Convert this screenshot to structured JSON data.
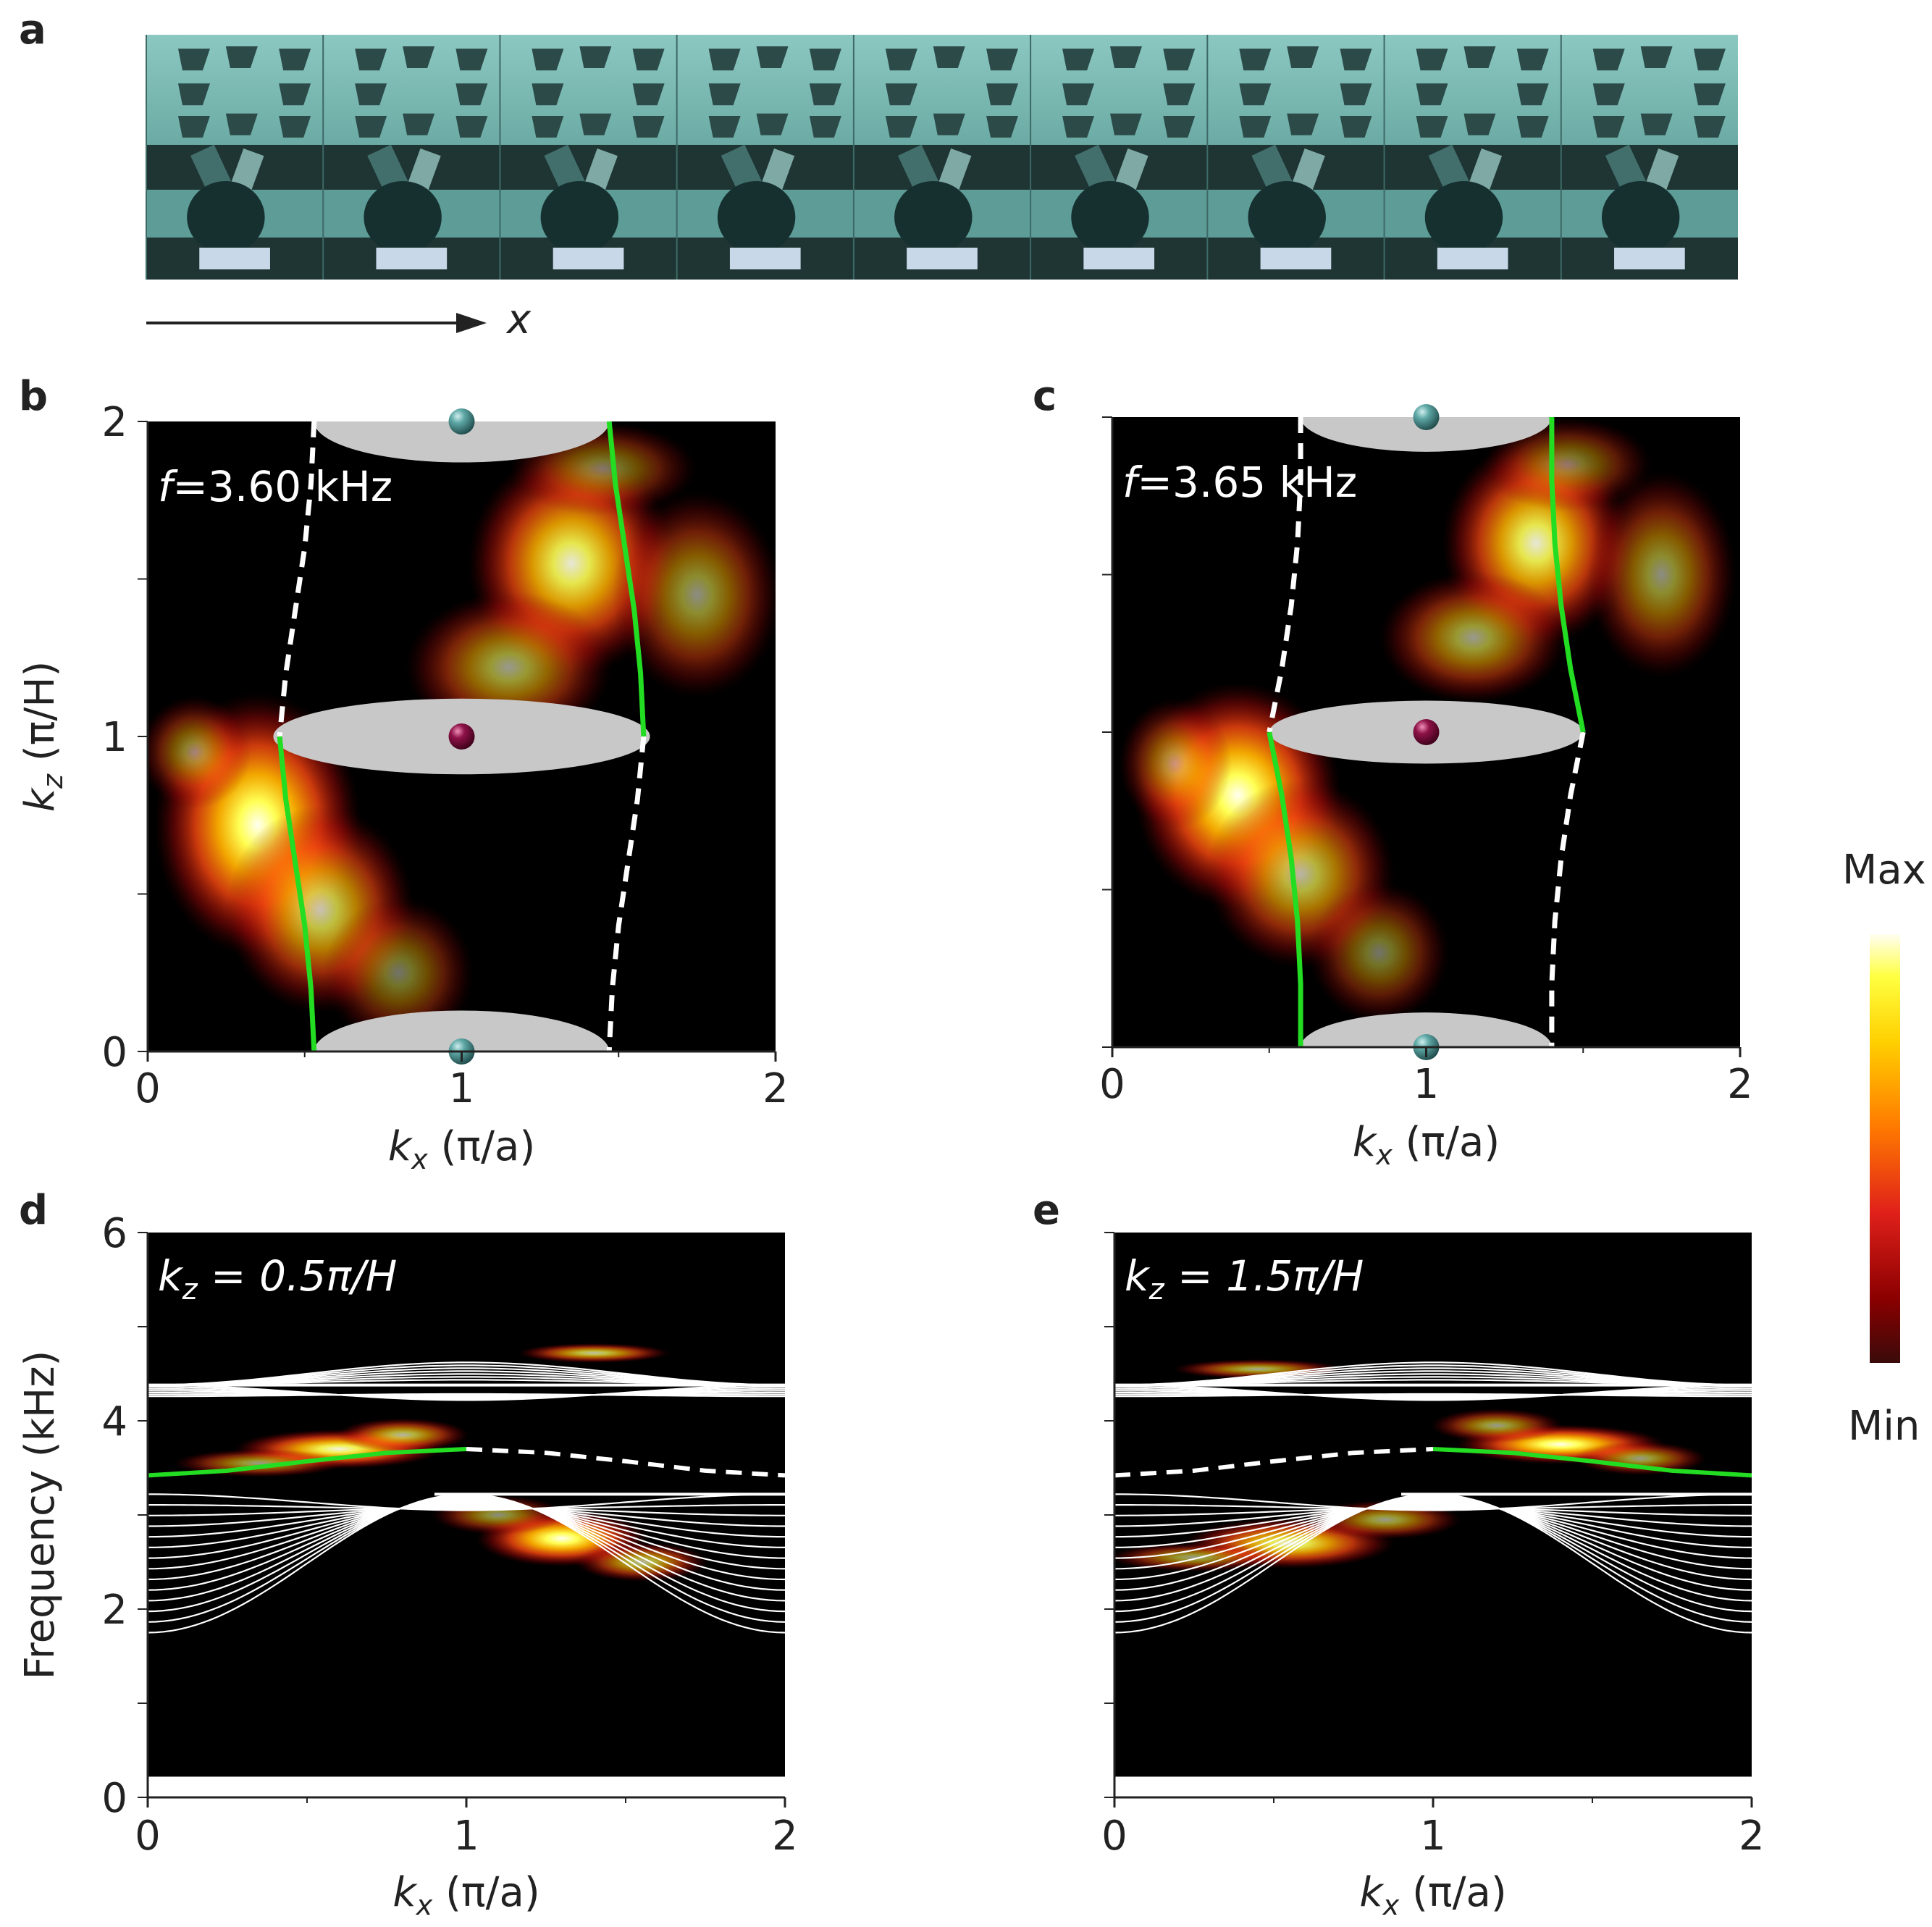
{
  "panel_labels": [
    "a",
    "b",
    "c",
    "d",
    "e"
  ],
  "structure": {
    "axis_label": "x",
    "unit_cells": 9
  },
  "colorbar": {
    "max_label": "Max",
    "min_label": "Min",
    "colormap": [
      "#3a0a0a",
      "#8b0000",
      "#e0201a",
      "#ff7a00",
      "#ffd000",
      "#ffff40",
      "#fffef0"
    ]
  },
  "colors": {
    "background": "#000000",
    "green_branch": "#22dd22",
    "white_branch": "#ffffff",
    "ellipse": "#c8c8c8",
    "teal_sphere": "#3f8a88",
    "magenta_sphere": "#7a0e3c",
    "structure_top": "#7dbcb6",
    "structure_dark": "#1e3534"
  },
  "chart_data": [
    {
      "panel": "b",
      "type": "heatmap",
      "annotation_italic": "f",
      "annotation_rest": "=3.60 kHz",
      "xlabel_var": "k",
      "xlabel_sub": "x",
      "xlabel_unit": " (π/a)",
      "ylabel_var": "k",
      "ylabel_sub": "z",
      "ylabel_unit": " (π/H)",
      "xlim": [
        0,
        2
      ],
      "ylim": [
        0,
        2
      ],
      "xticks": [
        "0",
        "1",
        "2"
      ],
      "yticks": [
        "0",
        "1",
        "2"
      ],
      "green_branches": [
        [
          [
            0.42,
            1.0
          ],
          [
            0.44,
            0.8
          ],
          [
            0.47,
            0.6
          ],
          [
            0.5,
            0.4
          ],
          [
            0.52,
            0.2
          ],
          [
            0.53,
            0.0
          ]
        ],
        [
          [
            1.47,
            2.0
          ],
          [
            1.49,
            1.8
          ],
          [
            1.52,
            1.6
          ],
          [
            1.55,
            1.4
          ],
          [
            1.57,
            1.2
          ],
          [
            1.58,
            1.0
          ]
        ]
      ],
      "white_branches": [
        [
          [
            0.53,
            2.0
          ],
          [
            0.52,
            1.8
          ],
          [
            0.5,
            1.6
          ],
          [
            0.47,
            1.4
          ],
          [
            0.44,
            1.2
          ],
          [
            0.42,
            1.0
          ]
        ],
        [
          [
            1.58,
            1.0
          ],
          [
            1.56,
            0.8
          ],
          [
            1.53,
            0.6
          ],
          [
            1.5,
            0.4
          ],
          [
            1.48,
            0.2
          ],
          [
            1.47,
            0.0
          ]
        ]
      ],
      "ellipses": [
        {
          "cx": 1.0,
          "cy": 1.0,
          "rx": 0.6,
          "ry": 0.12
        },
        {
          "cx": 1.0,
          "cy": 2.0,
          "rx": 0.47,
          "ry": 0.13
        },
        {
          "cx": 1.0,
          "cy": 0.0,
          "rx": 0.47,
          "ry": 0.13
        }
      ],
      "spheres": [
        {
          "x": 1.0,
          "y": 2.0,
          "kind": "teal"
        },
        {
          "x": 1.0,
          "y": 1.0,
          "kind": "magenta"
        },
        {
          "x": 1.0,
          "y": 0.0,
          "kind": "teal"
        }
      ],
      "blobs": [
        {
          "x": 0.35,
          "y": 0.72,
          "sx": 0.22,
          "sy": 0.28,
          "a": 1.0
        },
        {
          "x": 0.55,
          "y": 0.45,
          "sx": 0.2,
          "sy": 0.22,
          "a": 0.75
        },
        {
          "x": 0.8,
          "y": 0.25,
          "sx": 0.16,
          "sy": 0.16,
          "a": 0.45
        },
        {
          "x": 0.15,
          "y": 0.95,
          "sx": 0.12,
          "sy": 0.12,
          "a": 0.5
        },
        {
          "x": 1.35,
          "y": 1.55,
          "sx": 0.22,
          "sy": 0.24,
          "a": 0.9
        },
        {
          "x": 1.15,
          "y": 1.22,
          "sx": 0.22,
          "sy": 0.16,
          "a": 0.6
        },
        {
          "x": 1.75,
          "y": 1.45,
          "sx": 0.18,
          "sy": 0.22,
          "a": 0.55
        },
        {
          "x": 1.45,
          "y": 1.85,
          "sx": 0.2,
          "sy": 0.1,
          "a": 0.45
        }
      ]
    },
    {
      "panel": "c",
      "type": "heatmap",
      "annotation_italic": "f",
      "annotation_rest": "=3.65 kHz",
      "xlabel_var": "k",
      "xlabel_sub": "x",
      "xlabel_unit": " (π/a)",
      "ylabel_var": "",
      "ylabel_sub": "",
      "ylabel_unit": "",
      "xlim": [
        0,
        2
      ],
      "ylim": [
        0,
        2
      ],
      "xticks": [
        "0",
        "1",
        "2"
      ],
      "yticks": [],
      "green_branches": [
        [
          [
            0.5,
            1.0
          ],
          [
            0.54,
            0.8
          ],
          [
            0.57,
            0.6
          ],
          [
            0.59,
            0.4
          ],
          [
            0.6,
            0.2
          ],
          [
            0.6,
            0.0
          ]
        ],
        [
          [
            1.4,
            2.0
          ],
          [
            1.4,
            1.8
          ],
          [
            1.41,
            1.6
          ],
          [
            1.43,
            1.4
          ],
          [
            1.46,
            1.2
          ],
          [
            1.5,
            1.0
          ]
        ]
      ],
      "white_branches": [
        [
          [
            0.6,
            2.0
          ],
          [
            0.6,
            1.8
          ],
          [
            0.59,
            1.6
          ],
          [
            0.57,
            1.4
          ],
          [
            0.54,
            1.2
          ],
          [
            0.5,
            1.0
          ]
        ],
        [
          [
            1.5,
            1.0
          ],
          [
            1.46,
            0.8
          ],
          [
            1.43,
            0.6
          ],
          [
            1.41,
            0.4
          ],
          [
            1.4,
            0.2
          ],
          [
            1.4,
            0.0
          ]
        ]
      ],
      "ellipses": [
        {
          "cx": 1.0,
          "cy": 1.0,
          "rx": 0.5,
          "ry": 0.1
        },
        {
          "cx": 1.0,
          "cy": 2.0,
          "rx": 0.4,
          "ry": 0.11
        },
        {
          "cx": 1.0,
          "cy": 0.0,
          "rx": 0.4,
          "ry": 0.11
        }
      ],
      "spheres": [
        {
          "x": 1.0,
          "y": 2.0,
          "kind": "teal"
        },
        {
          "x": 1.0,
          "y": 1.0,
          "kind": "magenta"
        },
        {
          "x": 1.0,
          "y": 0.0,
          "kind": "teal"
        }
      ],
      "blobs": [
        {
          "x": 0.4,
          "y": 0.8,
          "sx": 0.22,
          "sy": 0.24,
          "a": 1.0
        },
        {
          "x": 0.6,
          "y": 0.55,
          "sx": 0.2,
          "sy": 0.2,
          "a": 0.7
        },
        {
          "x": 0.85,
          "y": 0.3,
          "sx": 0.15,
          "sy": 0.15,
          "a": 0.45
        },
        {
          "x": 0.2,
          "y": 0.9,
          "sx": 0.12,
          "sy": 0.14,
          "a": 0.5
        },
        {
          "x": 1.35,
          "y": 1.6,
          "sx": 0.2,
          "sy": 0.22,
          "a": 0.9
        },
        {
          "x": 1.15,
          "y": 1.3,
          "sx": 0.2,
          "sy": 0.14,
          "a": 0.6
        },
        {
          "x": 1.75,
          "y": 1.5,
          "sx": 0.16,
          "sy": 0.22,
          "a": 0.55
        },
        {
          "x": 1.45,
          "y": 1.85,
          "sx": 0.18,
          "sy": 0.1,
          "a": 0.45
        }
      ]
    },
    {
      "panel": "d",
      "type": "heatmap",
      "annotation_var": "k",
      "annotation_sub": "z",
      "annotation_rest": " = 0.5π/H",
      "xlabel_var": "k",
      "xlabel_sub": "x",
      "xlabel_unit": " (π/a)",
      "ylabel": "Frequency (kHz)",
      "xlim": [
        0,
        2
      ],
      "ylim": [
        0,
        6
      ],
      "xticks": [
        "0",
        "1",
        "2"
      ],
      "yticks": [
        "0",
        "2",
        "4",
        "6"
      ],
      "bulk_bands": {
        "lower_edge_min": 1.75,
        "lower_top": 3.22,
        "lower_dip": 3.05,
        "upper_bottom": 4.38,
        "upper_dip": 4.22,
        "upper_peak": 4.62,
        "count": 14
      },
      "green_edge": [
        [
          0.0,
          3.42
        ],
        [
          0.25,
          3.47
        ],
        [
          0.5,
          3.57
        ],
        [
          0.75,
          3.66
        ],
        [
          1.0,
          3.7
        ]
      ],
      "white_edge": [
        [
          1.0,
          3.7
        ],
        [
          1.25,
          3.66
        ],
        [
          1.5,
          3.57
        ],
        [
          1.75,
          3.47
        ],
        [
          2.0,
          3.42
        ]
      ],
      "blobs": [
        {
          "x": 1.3,
          "y": 2.75,
          "sx": 0.18,
          "sy": 0.2,
          "a": 1.0
        },
        {
          "x": 1.55,
          "y": 2.5,
          "sx": 0.14,
          "sy": 0.14,
          "a": 0.7
        },
        {
          "x": 1.1,
          "y": 3.0,
          "sx": 0.14,
          "sy": 0.14,
          "a": 0.55
        },
        {
          "x": 0.6,
          "y": 3.7,
          "sx": 0.22,
          "sy": 0.14,
          "a": 0.95
        },
        {
          "x": 0.35,
          "y": 3.55,
          "sx": 0.18,
          "sy": 0.1,
          "a": 0.6
        },
        {
          "x": 0.8,
          "y": 3.85,
          "sx": 0.14,
          "sy": 0.12,
          "a": 0.7
        },
        {
          "x": 1.4,
          "y": 4.72,
          "sx": 0.16,
          "sy": 0.07,
          "a": 0.75
        }
      ]
    },
    {
      "panel": "e",
      "type": "heatmap",
      "annotation_var": "k",
      "annotation_sub": "z",
      "annotation_rest": " = 1.5π/H",
      "xlabel_var": "k",
      "xlabel_sub": "x",
      "xlabel_unit": " (π/a)",
      "ylabel": "",
      "xlim": [
        0,
        2
      ],
      "ylim": [
        0,
        6
      ],
      "xticks": [
        "0",
        "1",
        "2"
      ],
      "yticks": [],
      "bulk_bands": {
        "lower_edge_min": 1.75,
        "lower_top": 3.22,
        "lower_dip": 3.05,
        "upper_bottom": 4.38,
        "upper_dip": 4.22,
        "upper_peak": 4.62,
        "count": 14
      },
      "green_edge": [
        [
          1.0,
          3.7
        ],
        [
          1.25,
          3.66
        ],
        [
          1.5,
          3.57
        ],
        [
          1.75,
          3.47
        ],
        [
          2.0,
          3.42
        ]
      ],
      "white_edge": [
        [
          0.0,
          3.42
        ],
        [
          0.25,
          3.47
        ],
        [
          0.5,
          3.57
        ],
        [
          0.75,
          3.66
        ],
        [
          1.0,
          3.7
        ]
      ],
      "blobs": [
        {
          "x": 0.55,
          "y": 2.7,
          "sx": 0.22,
          "sy": 0.18,
          "a": 0.9
        },
        {
          "x": 0.25,
          "y": 2.55,
          "sx": 0.18,
          "sy": 0.1,
          "a": 0.6
        },
        {
          "x": 0.85,
          "y": 2.95,
          "sx": 0.16,
          "sy": 0.14,
          "a": 0.6
        },
        {
          "x": 1.4,
          "y": 3.75,
          "sx": 0.22,
          "sy": 0.14,
          "a": 1.0
        },
        {
          "x": 1.65,
          "y": 3.6,
          "sx": 0.14,
          "sy": 0.12,
          "a": 0.6
        },
        {
          "x": 1.2,
          "y": 3.95,
          "sx": 0.14,
          "sy": 0.12,
          "a": 0.6
        },
        {
          "x": 0.45,
          "y": 4.55,
          "sx": 0.18,
          "sy": 0.07,
          "a": 0.65
        }
      ]
    }
  ]
}
